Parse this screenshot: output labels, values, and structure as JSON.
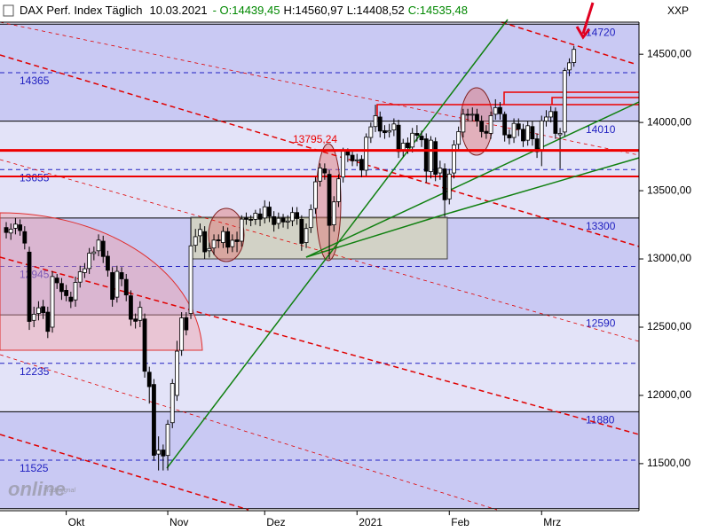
{
  "header": {
    "instrument": "DAX Perf. Index Täglich",
    "date": "10.03.2021",
    "ohlc": [
      {
        "text": "- O:14439,45",
        "color": "#008800"
      },
      {
        "text": "H:14560,97",
        "color": "#000000"
      },
      {
        "text": "L:14408,52",
        "color": "#000000"
      },
      {
        "text": "C:14535,48",
        "color": "#008800"
      }
    ],
    "symbol": "XXP",
    "watermark": "online",
    "watermark_small": "Tradesignal"
  },
  "chart_data": {
    "type": "candlestick",
    "open": [
      13230,
      13190,
      13225,
      13250,
      13200,
      13050,
      12550,
      12600,
      12650,
      12610,
      12500,
      12860,
      12820,
      12770,
      12720,
      12700,
      12830,
      12900,
      12930,
      13040,
      13060,
      13130,
      13020,
      12900,
      12720,
      12900,
      12850,
      12730,
      12560,
      12550,
      12560,
      12170,
      12080,
      11570,
      11600,
      11560,
      11800,
      12000,
      12330,
      12570,
      12600,
      13100,
      13170,
      13200,
      13060,
      13080,
      13140,
      13120,
      13200,
      13090,
      13140,
      13130,
      13300,
      13290,
      13290,
      13330,
      13300,
      13380,
      13310,
      13260,
      13300,
      13270,
      13280,
      13340,
      13290,
      13120,
      13230,
      13370,
      13570,
      13660,
      13620,
      13250,
      13420,
      13600,
      13790,
      13760,
      13720,
      13730,
      13650,
      13890,
      13970,
      14040,
      13940,
      13930,
      13945,
      13980,
      13790,
      13850,
      13820,
      13920,
      13900,
      13880,
      13640,
      13860,
      13630,
      13660,
      13440,
      13630,
      13840,
      13930,
      14060,
      14060,
      14060,
      14010,
      13935,
      13920,
      14060,
      14110,
      14060,
      13910,
      13890,
      13990,
      13950,
      13870,
      13970,
      13880,
      13800,
      14010,
      14040,
      14080,
      13910,
      13930,
      14385,
      14439.45
    ],
    "high": [
      13270,
      13260,
      13300,
      13290,
      13240,
      13090,
      12650,
      12690,
      12700,
      12650,
      12910,
      12890,
      12860,
      12810,
      12760,
      12870,
      12950,
      12970,
      13080,
      13090,
      13180,
      13170,
      13060,
      12940,
      12950,
      12940,
      12890,
      12770,
      12600,
      12690,
      12600,
      12210,
      12120,
      11700,
      11640,
      11820,
      12120,
      12400,
      12610,
      12610,
      13300,
      13220,
      13260,
      13240,
      13120,
      13180,
      13180,
      13240,
      13230,
      13180,
      13200,
      13320,
      13340,
      13320,
      13360,
      13370,
      13430,
      13420,
      13350,
      13340,
      13330,
      13320,
      13380,
      13380,
      13320,
      13260,
      13400,
      13600,
      13700,
      13700,
      13650,
      13460,
      13620,
      13815,
      13810,
      13790,
      13770,
      13760,
      13920,
      14000,
      14130,
      14080,
      13980,
      13990,
      14030,
      14020,
      13880,
      13890,
      13960,
      13980,
      13940,
      13920,
      13900,
      13890,
      13720,
      13700,
      13660,
      13870,
      13970,
      14100,
      14100,
      14110,
      14100,
      14050,
      13980,
      14080,
      14170,
      14150,
      14080,
      13950,
      14030,
      14030,
      13990,
      14010,
      14010,
      13920,
      14050,
      14090,
      14120,
      14110,
      13960,
      14400,
      14470,
      14560.97
    ],
    "low": [
      13150,
      13140,
      13180,
      13170,
      13070,
      12480,
      12500,
      12550,
      12560,
      12420,
      12460,
      12780,
      12700,
      12690,
      12640,
      12650,
      12790,
      12860,
      12890,
      12990,
      13020,
      12970,
      12870,
      12650,
      12680,
      12800,
      12690,
      12510,
      12490,
      12500,
      12130,
      11940,
      11520,
      11450,
      11450,
      11450,
      11760,
      11960,
      12290,
      12440,
      12560,
      13050,
      13120,
      13000,
      13010,
      13030,
      13080,
      13080,
      13040,
      13050,
      13050,
      13090,
      13250,
      13240,
      13250,
      13240,
      13260,
      13270,
      13200,
      13220,
      13230,
      13220,
      13240,
      13250,
      13060,
      13080,
      13190,
      13330,
      13530,
      13580,
      13000,
      13200,
      13380,
      13560,
      13710,
      13680,
      13680,
      13600,
      13610,
      13850,
      13930,
      13890,
      13880,
      13890,
      13900,
      13740,
      13750,
      13770,
      13780,
      13860,
      13820,
      13560,
      13590,
      13570,
      13580,
      13310,
      13400,
      13590,
      13800,
      13890,
      14010,
      14010,
      13970,
      13890,
      13880,
      13880,
      14020,
      14020,
      13860,
      13840,
      13850,
      13900,
      13820,
      13830,
      13830,
      13740,
      13680,
      13970,
      14000,
      13880,
      13660,
      13900,
      14340,
      14408.52
    ],
    "close": [
      13194,
      13218,
      13255,
      13208,
      13116,
      12542,
      12595,
      12642,
      12606,
      12469,
      12871,
      12825,
      12761,
      12731,
      12689,
      12828,
      12906,
      12928,
      13042,
      13051,
      13138,
      13018,
      12917,
      12704,
      12909,
      12854,
      12736,
      12558,
      12543,
      12645,
      12177,
      12064,
      11561,
      11598,
      11556,
      11788,
      12088,
      12324,
      12568,
      12480,
      13096,
      13163,
      13216,
      13052,
      13076,
      13138,
      13133,
      13201,
      13086,
      13137,
      13127,
      13292,
      13290,
      13286,
      13335,
      13291,
      13382,
      13313,
      13252,
      13298,
      13271,
      13278,
      13340,
      13296,
      13114,
      13223,
      13362,
      13565,
      13667,
      13630,
      13246,
      13418,
      13587,
      13790,
      13761,
      13719,
      13726,
      13651,
      13892,
      13968,
      14050,
      13937,
      13925,
      13940,
      13989,
      13787,
      13848,
      13815,
      13921,
      13906,
      13873,
      13643,
      13870,
      13620,
      13666,
      13433,
      13622,
      13836,
      13933,
      14060,
      14057,
      14060,
      14011,
      13933,
      13921,
      14050,
      14109,
      14064,
      13909,
      13887,
      13993,
      13950,
      13865,
      13976,
      13880,
      13786,
      14012,
      14040,
      14080,
      13920,
      13920,
      14380,
      14437,
      14535.48
    ],
    "up_color": "#ffffff",
    "down_color": "#000000",
    "wick_color": "#000000",
    "xlim": [
      -1.35,
      137.1
    ],
    "xticks": [
      {
        "value": 13,
        "label": "Okt"
      },
      {
        "value": 35,
        "label": "Nov"
      },
      {
        "value": 56,
        "label": "Dez"
      },
      {
        "value": 76,
        "label": "2021"
      },
      {
        "value": 96,
        "label": "Feb"
      },
      {
        "value": 116,
        "label": "Mrz"
      }
    ],
    "ylim": [
      11155,
      14735
    ],
    "yticks": [
      {
        "value": 11500,
        "label": "11500,00"
      },
      {
        "value": 12000,
        "label": "12000,00"
      },
      {
        "value": 12500,
        "label": "12500,00"
      },
      {
        "value": 13000,
        "label": "13000,00"
      },
      {
        "value": 13500,
        "label": "13500,00"
      },
      {
        "value": 14000,
        "label": "14000,00"
      },
      {
        "value": 14500,
        "label": "14500,00"
      }
    ],
    "levels": [
      14720,
      14365,
      14010,
      13655,
      13300,
      12945,
      12590,
      12235,
      11880,
      11525,
      11170
    ],
    "level_color": "#2020c0",
    "annotation": {
      "value": 13795.24,
      "label": "13795,24",
      "color": "#ee0000"
    }
  }
}
